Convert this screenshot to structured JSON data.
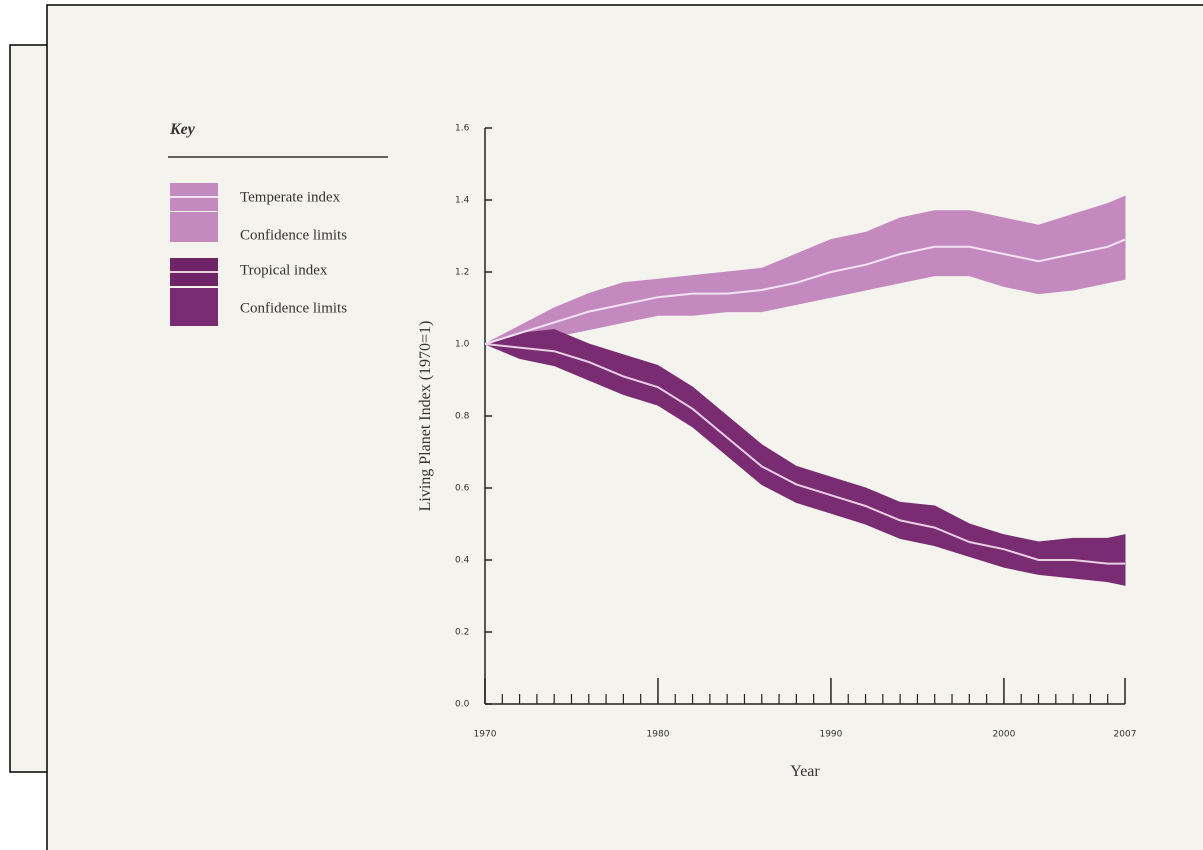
{
  "chart_data": {
    "type": "band-line",
    "key_title": "Key",
    "ylabel": "Living Planet Index (1970=1)",
    "xlabel": "Year",
    "x": [
      1970,
      1972,
      1974,
      1976,
      1978,
      1980,
      1982,
      1984,
      1986,
      1988,
      1990,
      1992,
      1994,
      1996,
      1998,
      2000,
      2002,
      2004,
      2006,
      2007
    ],
    "series": [
      {
        "name": "Temperate index",
        "color": "#f3e3f1",
        "swatch": "#c48ac0",
        "values": [
          1.0,
          1.03,
          1.06,
          1.09,
          1.11,
          1.13,
          1.14,
          1.14,
          1.15,
          1.17,
          1.2,
          1.22,
          1.25,
          1.27,
          1.27,
          1.25,
          1.23,
          1.25,
          1.27,
          1.29
        ]
      },
      {
        "name": "Confidence limits",
        "color": "#c48ac0",
        "upper": [
          1.0,
          1.05,
          1.1,
          1.14,
          1.17,
          1.18,
          1.19,
          1.2,
          1.21,
          1.25,
          1.29,
          1.31,
          1.35,
          1.37,
          1.37,
          1.35,
          1.33,
          1.36,
          1.39,
          1.41
        ],
        "lower": [
          1.0,
          1.0,
          1.02,
          1.04,
          1.06,
          1.08,
          1.08,
          1.09,
          1.09,
          1.11,
          1.13,
          1.15,
          1.17,
          1.19,
          1.19,
          1.16,
          1.14,
          1.15,
          1.17,
          1.18
        ]
      },
      {
        "name": "Tropical index",
        "color": "#e6cfe2",
        "swatch": "#6e2466",
        "values": [
          1.0,
          0.99,
          0.98,
          0.95,
          0.91,
          0.88,
          0.82,
          0.74,
          0.66,
          0.61,
          0.58,
          0.55,
          0.51,
          0.49,
          0.45,
          0.43,
          0.4,
          0.4,
          0.39,
          0.39
        ]
      },
      {
        "name": "Confidence limits",
        "color": "#7a2c72",
        "upper": [
          1.0,
          1.03,
          1.04,
          1.0,
          0.97,
          0.94,
          0.88,
          0.8,
          0.72,
          0.66,
          0.63,
          0.6,
          0.56,
          0.55,
          0.5,
          0.47,
          0.45,
          0.46,
          0.46,
          0.47
        ],
        "lower": [
          1.0,
          0.96,
          0.94,
          0.9,
          0.86,
          0.83,
          0.77,
          0.69,
          0.61,
          0.56,
          0.53,
          0.5,
          0.46,
          0.44,
          0.41,
          0.38,
          0.36,
          0.35,
          0.34,
          0.33
        ]
      }
    ],
    "xlim": [
      1970,
      2007
    ],
    "xticks": [
      1970,
      1980,
      1990,
      2000,
      2007
    ],
    "xminorticks": [
      1971,
      1972,
      1973,
      1974,
      1975,
      1976,
      1977,
      1978,
      1979,
      1981,
      1982,
      1983,
      1984,
      1985,
      1986,
      1987,
      1988,
      1989,
      1991,
      1992,
      1993,
      1994,
      1995,
      1996,
      1997,
      1998,
      1999,
      2001,
      2002,
      2003,
      2004,
      2005,
      2006
    ],
    "ylim": [
      0,
      1.6
    ],
    "yticks": [
      {
        "value": 0,
        "label": "0.0"
      },
      {
        "value": 0.2,
        "label": "0.2"
      },
      {
        "value": 0.4,
        "label": "0.4"
      },
      {
        "value": 0.6,
        "label": "0.6"
      },
      {
        "value": 0.8,
        "label": "0.8"
      },
      {
        "value": 1,
        "label": "1.0"
      },
      {
        "value": 1.2,
        "label": "1.2"
      },
      {
        "value": 1.4,
        "label": "1.4"
      },
      {
        "value": 1.6,
        "label": "1.6"
      }
    ]
  }
}
